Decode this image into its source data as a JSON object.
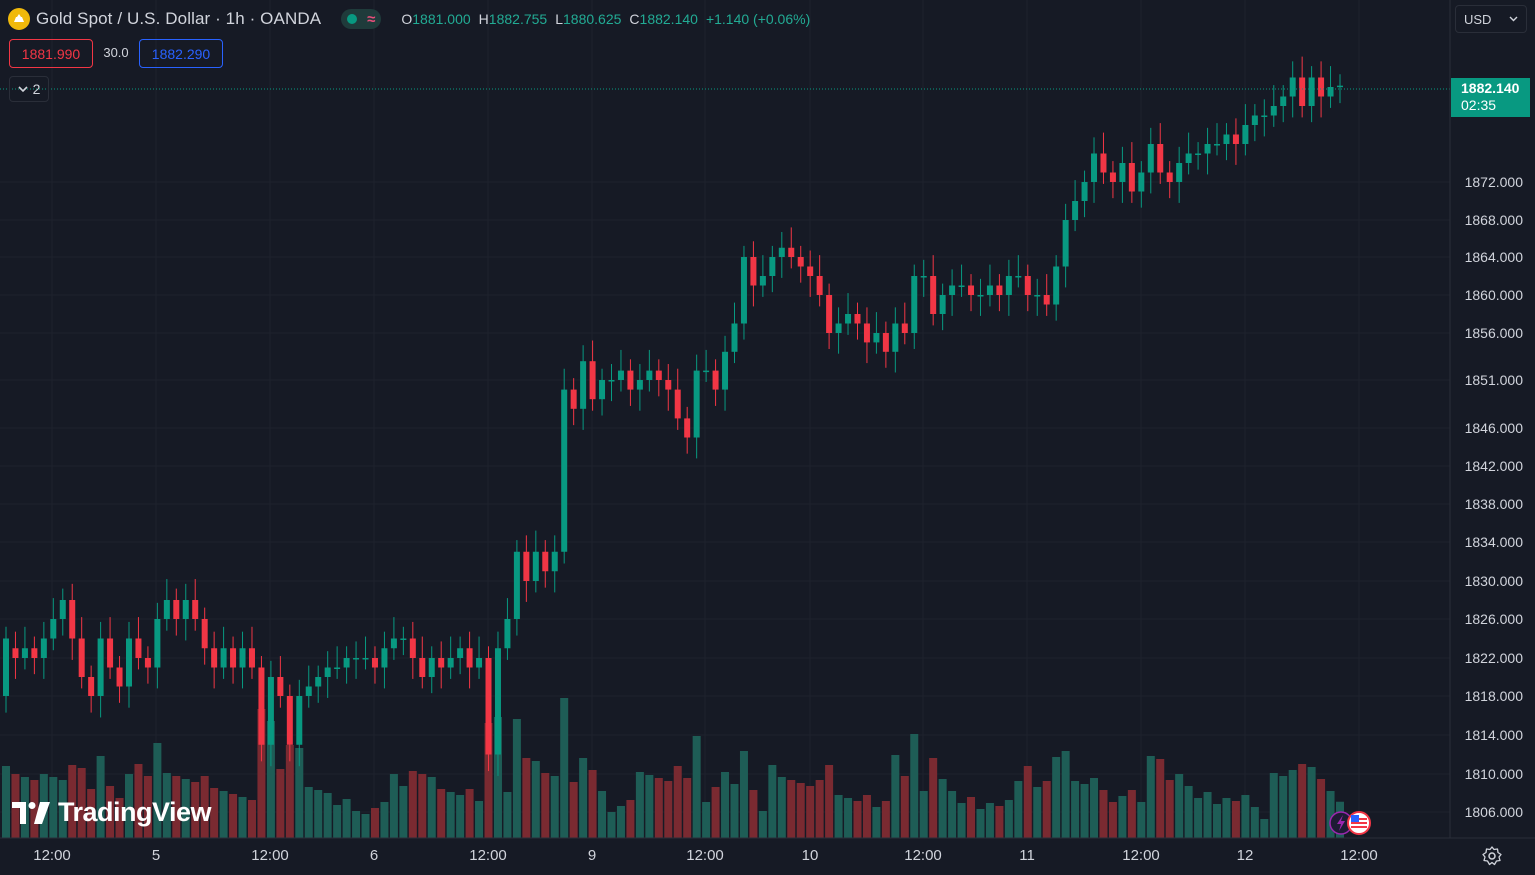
{
  "header": {
    "symbol_title": "Gold Spot / U.S. Dollar · 1h · OANDA",
    "ohlc": [
      {
        "key": "O",
        "value": "1881.000"
      },
      {
        "key": "H",
        "value": "1882.755"
      },
      {
        "key": "L",
        "value": "1880.625"
      },
      {
        "key": "C",
        "value": "1882.140"
      }
    ],
    "change": "+1.140 (+0.06%)"
  },
  "trading": {
    "sell_price": "1881.990",
    "spread": "30.0",
    "buy_price": "1882.290"
  },
  "indicators_collapsed_count": "2",
  "currency_select": "USD",
  "last_price": {
    "price": "1882.140",
    "countdown": "02:35"
  },
  "brand": "TradingView",
  "colors": {
    "background": "#161a25",
    "grid": "#1e222d",
    "up": "#089981",
    "down": "#f23645",
    "volume_up": "#1e5d56",
    "volume_down": "#7a2a31",
    "brand_logo": "#f0b90b"
  },
  "icons": [
    "gold-coin-icon",
    "market-open-dot-icon",
    "wave-icon",
    "chevron-down-icon",
    "gear-icon",
    "lightning-icon",
    "us-flag-icon",
    "tradingview-logo-icon"
  ],
  "chart_data": {
    "type": "candlestick",
    "y_axis": {
      "tick_labels": [
        "1872.000",
        "1868.000",
        "1864.000",
        "1860.000",
        "1856.000",
        "1851.000",
        "1846.000",
        "1842.000",
        "1838.000",
        "1834.000",
        "1830.000",
        "1826.000",
        "1822.000",
        "1818.000",
        "1814.000",
        "1810.000",
        "1806.000"
      ],
      "tick_values": [
        1872,
        1868,
        1864,
        1860,
        1856,
        1851,
        1846,
        1842,
        1838,
        1834,
        1830,
        1826,
        1822,
        1818,
        1814,
        1810,
        1806
      ],
      "range": [
        1803,
        1887
      ]
    },
    "x_axis": {
      "tick_labels": [
        "12:00",
        "5",
        "12:00",
        "6",
        "12:00",
        "9",
        "12:00",
        "10",
        "12:00",
        "11",
        "12:00",
        "12",
        "12:00"
      ]
    },
    "series_points": [
      [
        1818,
        1824
      ],
      [
        1823,
        1822
      ],
      [
        1822,
        1823
      ],
      [
        1823,
        1822
      ],
      [
        1822,
        1824
      ],
      [
        1824,
        1826
      ],
      [
        1826,
        1828
      ],
      [
        1828,
        1824
      ],
      [
        1824,
        1820
      ],
      [
        1820,
        1818
      ],
      [
        1818,
        1824
      ],
      [
        1824,
        1821
      ],
      [
        1821,
        1819
      ],
      [
        1819,
        1824
      ],
      [
        1824,
        1822
      ],
      [
        1822,
        1821
      ],
      [
        1821,
        1826
      ],
      [
        1826,
        1828
      ],
      [
        1828,
        1826
      ],
      [
        1826,
        1828
      ],
      [
        1828,
        1826
      ],
      [
        1826,
        1823
      ],
      [
        1823,
        1821
      ],
      [
        1821,
        1823
      ],
      [
        1823,
        1821
      ],
      [
        1821,
        1823
      ],
      [
        1823,
        1821
      ],
      [
        1821,
        1813
      ],
      [
        1813,
        1820
      ],
      [
        1820,
        1818
      ],
      [
        1818,
        1813
      ],
      [
        1813,
        1818
      ],
      [
        1818,
        1819
      ],
      [
        1819,
        1820
      ],
      [
        1820,
        1821
      ],
      [
        1821,
        1821
      ],
      [
        1821,
        1822
      ],
      [
        1822,
        1822
      ],
      [
        1822,
        1822
      ],
      [
        1822,
        1821
      ],
      [
        1821,
        1823
      ],
      [
        1823,
        1824
      ],
      [
        1824,
        1824
      ],
      [
        1824,
        1822
      ],
      [
        1822,
        1820
      ],
      [
        1820,
        1822
      ],
      [
        1822,
        1821
      ],
      [
        1821,
        1822
      ],
      [
        1822,
        1823
      ],
      [
        1823,
        1821
      ],
      [
        1821,
        1822
      ],
      [
        1822,
        1812
      ],
      [
        1812,
        1823
      ],
      [
        1823,
        1826
      ],
      [
        1826,
        1833
      ],
      [
        1833,
        1830
      ],
      [
        1830,
        1833
      ],
      [
        1833,
        1831
      ],
      [
        1831,
        1833
      ],
      [
        1833,
        1850
      ],
      [
        1850,
        1848
      ],
      [
        1848,
        1853
      ],
      [
        1853,
        1849
      ],
      [
        1849,
        1851
      ],
      [
        1851,
        1851
      ],
      [
        1851,
        1852
      ],
      [
        1852,
        1850
      ],
      [
        1850,
        1851
      ],
      [
        1851,
        1852
      ],
      [
        1852,
        1851
      ],
      [
        1851,
        1850
      ],
      [
        1850,
        1847
      ],
      [
        1847,
        1845
      ],
      [
        1845,
        1852
      ],
      [
        1852,
        1852
      ],
      [
        1852,
        1850
      ],
      [
        1850,
        1854
      ],
      [
        1854,
        1857
      ],
      [
        1857,
        1864
      ],
      [
        1864,
        1861
      ],
      [
        1861,
        1862
      ],
      [
        1862,
        1864
      ],
      [
        1864,
        1865
      ],
      [
        1865,
        1864
      ],
      [
        1864,
        1863
      ],
      [
        1863,
        1862
      ],
      [
        1862,
        1860
      ],
      [
        1860,
        1856
      ],
      [
        1856,
        1857
      ],
      [
        1857,
        1858
      ],
      [
        1858,
        1857
      ],
      [
        1857,
        1855
      ],
      [
        1855,
        1856
      ],
      [
        1856,
        1854
      ],
      [
        1854,
        1857
      ],
      [
        1857,
        1856
      ],
      [
        1856,
        1862
      ],
      [
        1862,
        1862
      ],
      [
        1862,
        1858
      ],
      [
        1858,
        1860
      ],
      [
        1860,
        1861
      ],
      [
        1861,
        1861
      ],
      [
        1861,
        1860
      ],
      [
        1860,
        1860
      ],
      [
        1860,
        1861
      ],
      [
        1861,
        1860
      ],
      [
        1860,
        1862
      ],
      [
        1862,
        1862
      ],
      [
        1862,
        1860
      ],
      [
        1860,
        1860
      ],
      [
        1860,
        1859
      ],
      [
        1859,
        1863
      ],
      [
        1863,
        1868
      ],
      [
        1868,
        1870
      ],
      [
        1870,
        1872
      ],
      [
        1872,
        1875
      ],
      [
        1875,
        1873
      ],
      [
        1873,
        1872
      ],
      [
        1872,
        1874
      ],
      [
        1874,
        1871
      ],
      [
        1871,
        1873
      ],
      [
        1873,
        1876
      ],
      [
        1876,
        1873
      ],
      [
        1873,
        1872
      ],
      [
        1872,
        1874
      ],
      [
        1874,
        1875
      ],
      [
        1875,
        1875
      ],
      [
        1875,
        1876
      ],
      [
        1876,
        1876
      ],
      [
        1876,
        1877
      ],
      [
        1877,
        1876
      ],
      [
        1876,
        1878
      ],
      [
        1878,
        1879
      ],
      [
        1879,
        1879
      ],
      [
        1879,
        1880
      ],
      [
        1880,
        1881
      ],
      [
        1881,
        1883
      ],
      [
        1883,
        1880
      ],
      [
        1880,
        1883
      ],
      [
        1883,
        1881
      ],
      [
        1881,
        1882
      ],
      [
        1882,
        1882.14
      ]
    ],
    "series_note_omit": true
  }
}
